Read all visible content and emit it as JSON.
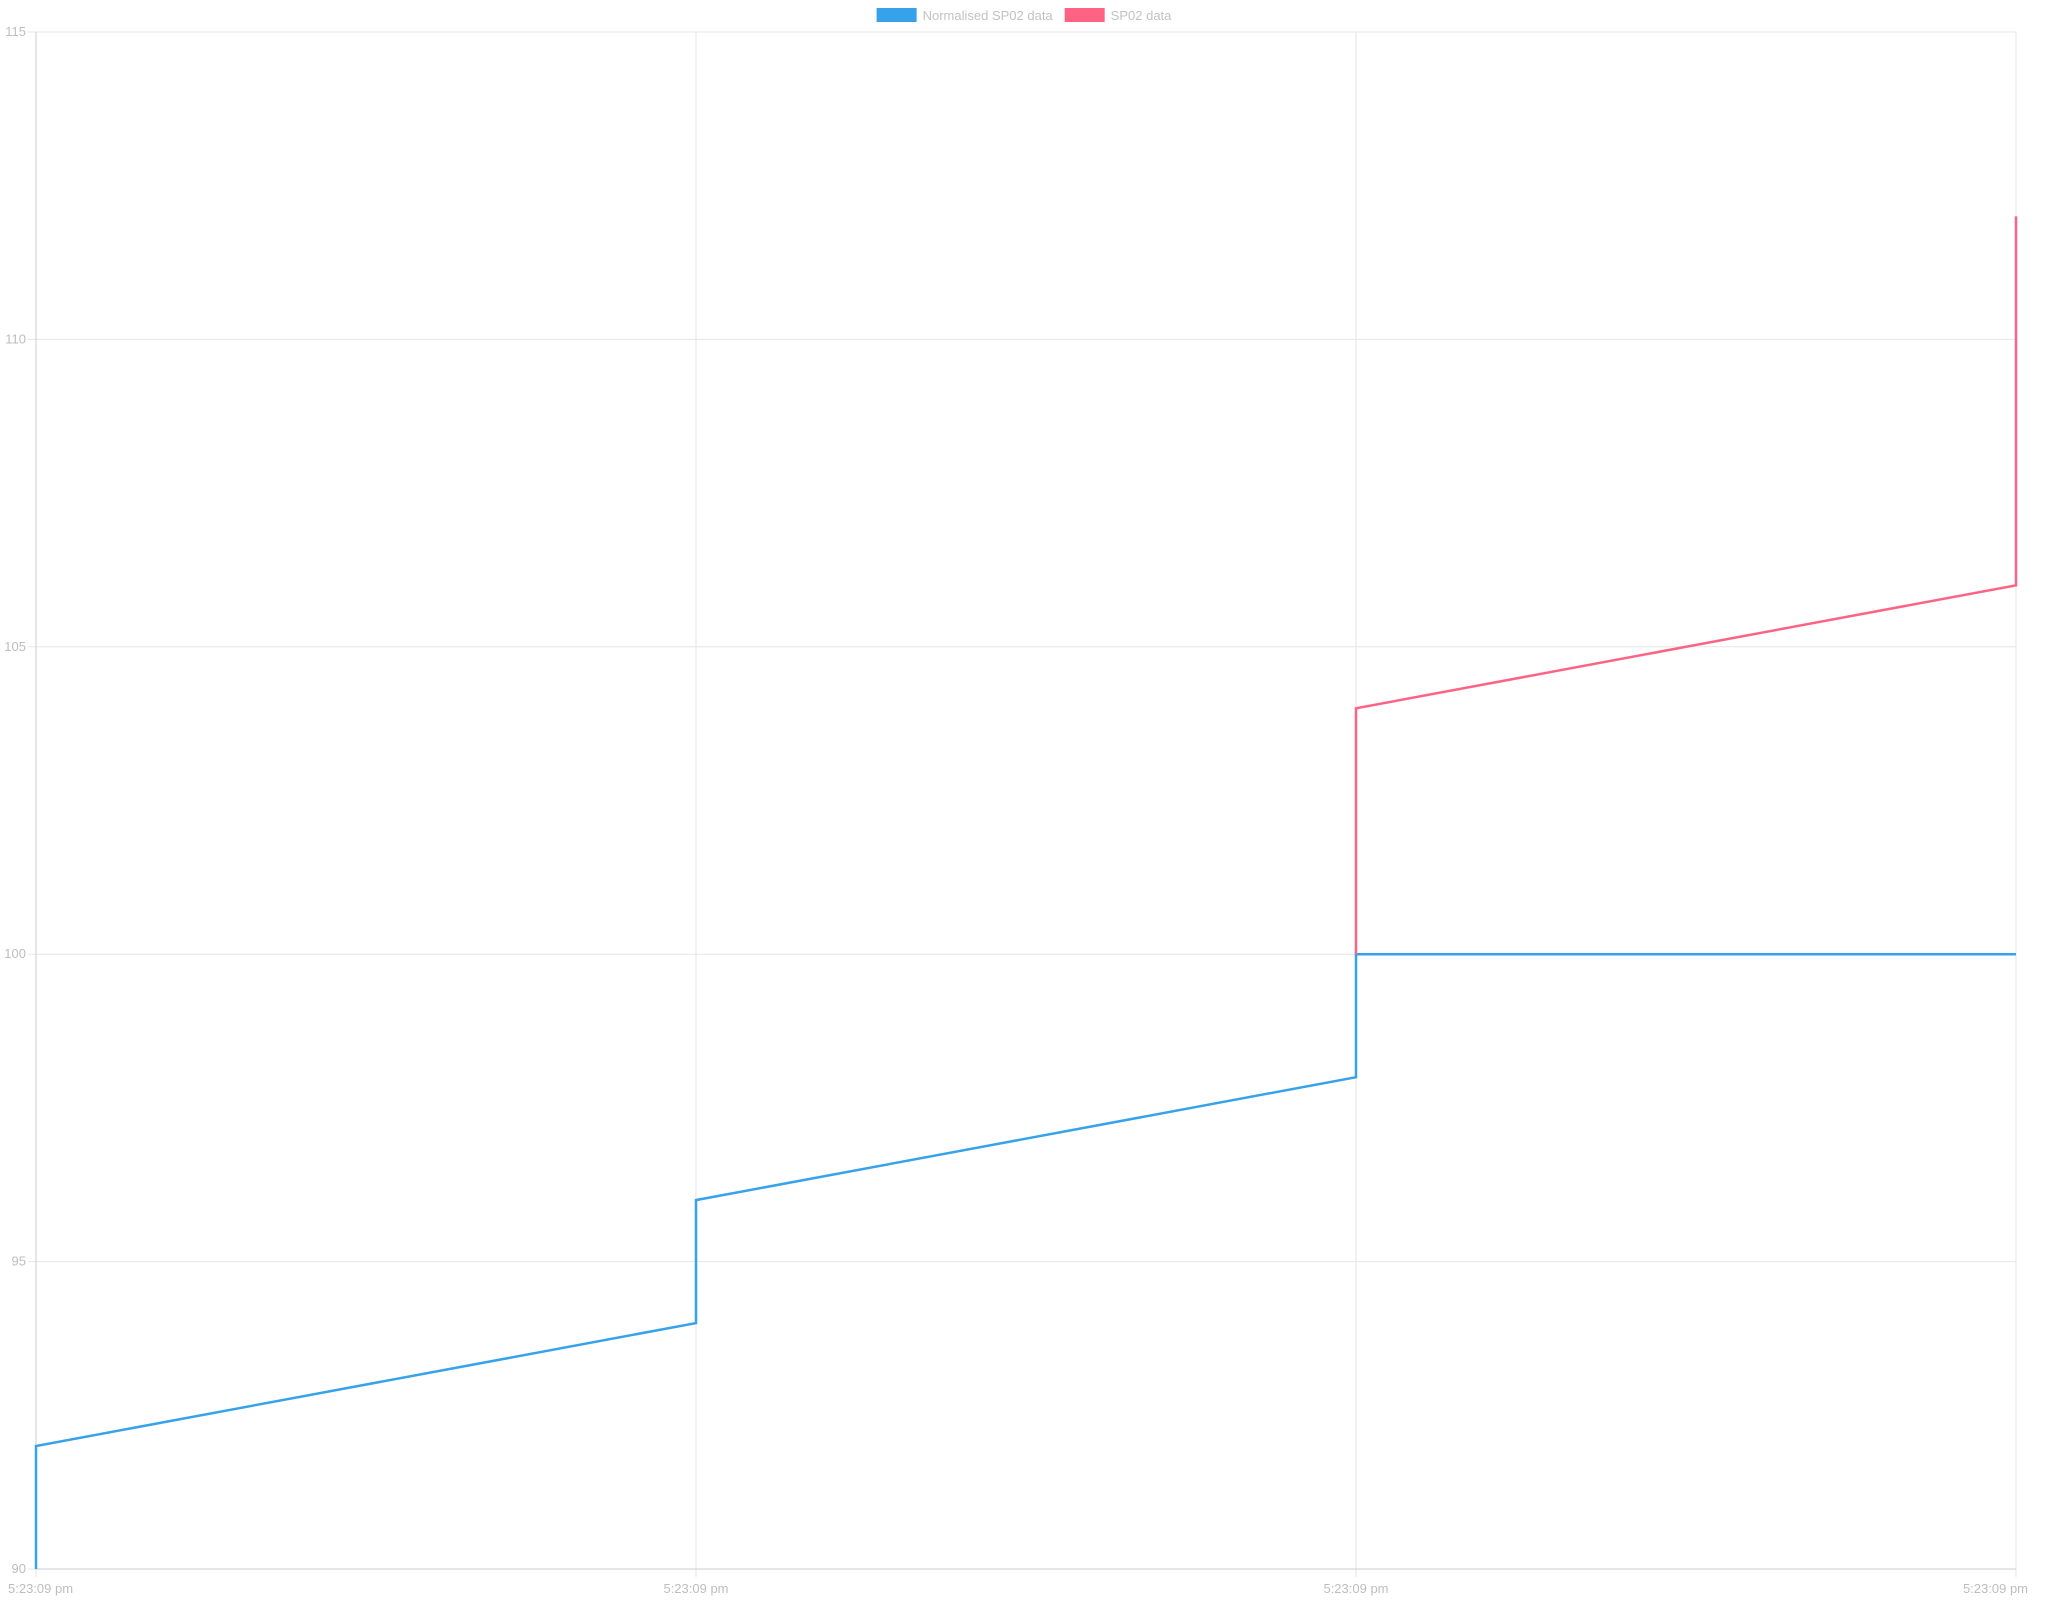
{
  "chart_data": {
    "type": "line",
    "title": "",
    "xlabel": "",
    "ylabel": "",
    "x_ticks": [
      "5:23:09 pm",
      "5:23:09 pm",
      "5:23:09 pm",
      "5:23:09 pm"
    ],
    "y_ticks": [
      90,
      95,
      100,
      105,
      110,
      115
    ],
    "ylim": [
      90,
      115
    ],
    "grid": true,
    "legend_position": "top-center",
    "series": [
      {
        "name": "Normalised SP02 data",
        "color": "#36a2eb",
        "points": [
          {
            "x": 0,
            "y": 90
          },
          {
            "x": 0,
            "y": 92
          },
          {
            "x": 1,
            "y": 94
          },
          {
            "x": 1,
            "y": 96
          },
          {
            "x": 2,
            "y": 98
          },
          {
            "x": 2,
            "y": 100
          },
          {
            "x": 3,
            "y": 100
          }
        ]
      },
      {
        "name": "SP02 data",
        "color": "#ff6384",
        "points": [
          {
            "x": 2,
            "y": 100
          },
          {
            "x": 2,
            "y": 104
          },
          {
            "x": 3,
            "y": 106
          },
          {
            "x": 3,
            "y": 112
          }
        ]
      }
    ]
  }
}
